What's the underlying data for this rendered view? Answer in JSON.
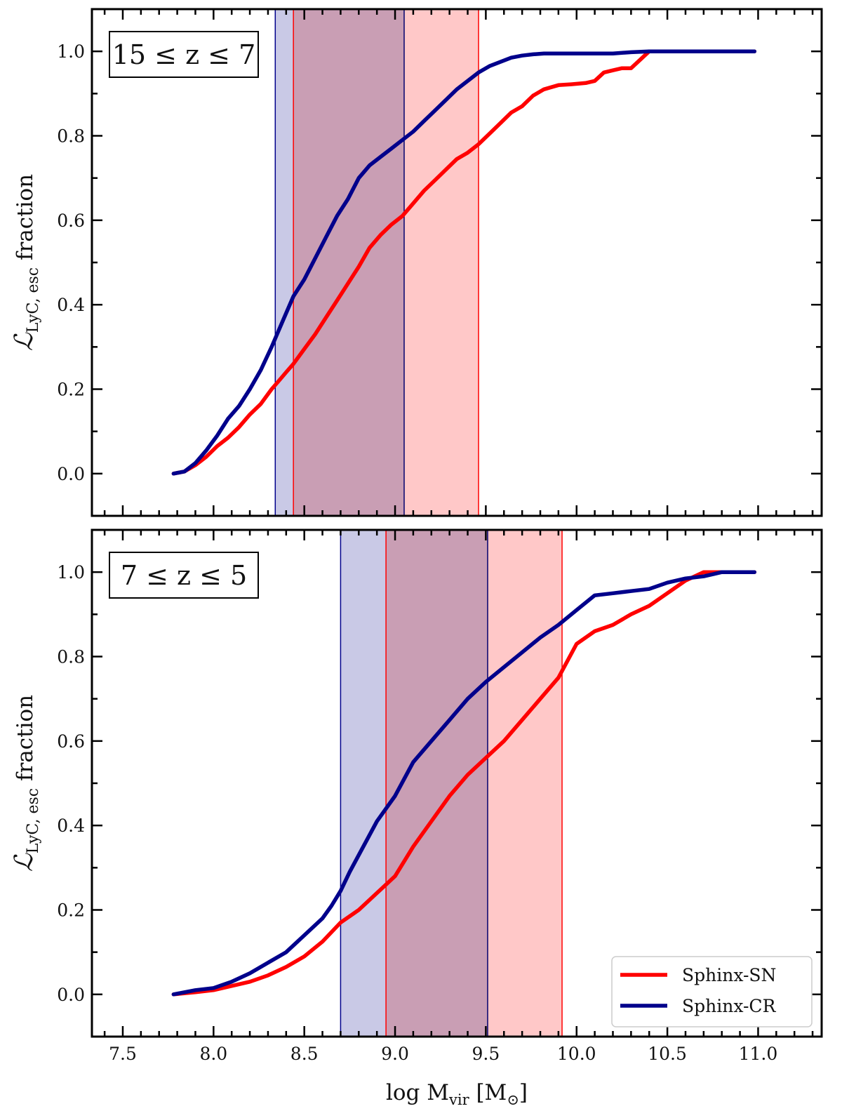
{
  "chart_data": [
    {
      "type": "line",
      "panel": "top",
      "annotation": "15 ≤ z ≤ 7",
      "ylabel": "ℒ_{LyC, esc} fraction",
      "ylabel_main": "ℒ",
      "ylabel_sub": "LyC, esc",
      "ylabel_tail": " fraction",
      "xlim": [
        7.33,
        11.35
      ],
      "ylim": [
        -0.1,
        1.1
      ],
      "yticks": [
        "0.0",
        "0.2",
        "0.4",
        "0.6",
        "0.8",
        "1.0"
      ],
      "bands": [
        {
          "series": "Sphinx-CR",
          "x0": 8.34,
          "x1": 9.05,
          "color": "#00008b",
          "fill": "#c9c9e6"
        },
        {
          "series": "Sphinx-SN",
          "x0": 8.44,
          "x1": 9.46,
          "color": "#ff0000",
          "fill": "#ffc8c8"
        }
      ],
      "series": [
        {
          "name": "Sphinx-SN",
          "color": "#ff0000",
          "x": [
            7.78,
            7.84,
            7.9,
            7.96,
            8.02,
            8.08,
            8.14,
            8.2,
            8.26,
            8.32,
            8.36,
            8.4,
            8.44,
            8.5,
            8.56,
            8.62,
            8.68,
            8.74,
            8.8,
            8.86,
            8.92,
            8.98,
            9.04,
            9.1,
            9.16,
            9.22,
            9.28,
            9.34,
            9.4,
            9.46,
            9.52,
            9.58,
            9.64,
            9.7,
            9.76,
            9.82,
            9.9,
            9.97,
            10.05,
            10.1,
            10.15,
            10.2,
            10.25,
            10.3,
            10.35,
            10.4,
            10.5,
            10.98
          ],
          "y": [
            0.0,
            0.005,
            0.02,
            0.04,
            0.065,
            0.085,
            0.11,
            0.14,
            0.165,
            0.2,
            0.22,
            0.24,
            0.26,
            0.295,
            0.33,
            0.37,
            0.41,
            0.45,
            0.49,
            0.535,
            0.565,
            0.59,
            0.61,
            0.64,
            0.67,
            0.695,
            0.72,
            0.745,
            0.76,
            0.78,
            0.805,
            0.83,
            0.855,
            0.87,
            0.895,
            0.91,
            0.92,
            0.922,
            0.925,
            0.93,
            0.95,
            0.955,
            0.96,
            0.96,
            0.98,
            1.0,
            1.0,
            1.0
          ]
        },
        {
          "name": "Sphinx-CR",
          "color": "#00008b",
          "x": [
            7.78,
            7.84,
            7.9,
            7.96,
            8.02,
            8.08,
            8.14,
            8.2,
            8.26,
            8.32,
            8.38,
            8.44,
            8.5,
            8.56,
            8.62,
            8.68,
            8.74,
            8.8,
            8.86,
            8.92,
            8.98,
            9.04,
            9.1,
            9.16,
            9.22,
            9.28,
            9.34,
            9.4,
            9.46,
            9.52,
            9.58,
            9.64,
            9.7,
            9.76,
            9.82,
            9.88,
            9.94,
            10.0,
            10.2,
            10.3,
            10.4,
            10.98
          ],
          "y": [
            0.0,
            0.005,
            0.025,
            0.055,
            0.09,
            0.13,
            0.16,
            0.2,
            0.245,
            0.3,
            0.36,
            0.42,
            0.46,
            0.51,
            0.56,
            0.61,
            0.65,
            0.7,
            0.73,
            0.75,
            0.77,
            0.79,
            0.81,
            0.835,
            0.86,
            0.885,
            0.91,
            0.93,
            0.95,
            0.965,
            0.975,
            0.985,
            0.99,
            0.993,
            0.995,
            0.995,
            0.995,
            0.995,
            0.995,
            0.998,
            1.0,
            1.0
          ]
        }
      ]
    },
    {
      "type": "line",
      "panel": "bottom",
      "annotation": "7 ≤ z ≤ 5",
      "ylabel": "ℒ_{LyC, esc} fraction",
      "ylabel_main": "ℒ",
      "ylabel_sub": "LyC, esc",
      "ylabel_tail": " fraction",
      "xlabel": "log M_vir [M_⊙]",
      "xlabel_main": "log M",
      "xlabel_sub": "vir",
      "xlabel_mid": " [M",
      "xlabel_sub2": "⊙",
      "xlabel_tail": "]",
      "xlim": [
        7.33,
        11.35
      ],
      "ylim": [
        -0.1,
        1.1
      ],
      "xticks": [
        "7.5",
        "8.0",
        "8.5",
        "9.0",
        "9.5",
        "10.0",
        "10.5",
        "11.0"
      ],
      "yticks": [
        "0.0",
        "0.2",
        "0.4",
        "0.6",
        "0.8",
        "1.0"
      ],
      "legend": {
        "location": "lower right",
        "entries": [
          "Sphinx-SN",
          "Sphinx-CR"
        ]
      },
      "bands": [
        {
          "series": "Sphinx-CR",
          "x0": 8.7,
          "x1": 9.51,
          "color": "#00008b",
          "fill": "#c9c9e6"
        },
        {
          "series": "Sphinx-SN",
          "x0": 8.95,
          "x1": 9.92,
          "color": "#ff0000",
          "fill": "#ffc8c8"
        }
      ],
      "series": [
        {
          "name": "Sphinx-SN",
          "color": "#ff0000",
          "x": [
            7.78,
            7.9,
            8.0,
            8.1,
            8.2,
            8.3,
            8.4,
            8.5,
            8.6,
            8.7,
            8.8,
            8.9,
            9.0,
            9.1,
            9.2,
            9.3,
            9.4,
            9.5,
            9.6,
            9.7,
            9.8,
            9.9,
            10.0,
            10.1,
            10.2,
            10.3,
            10.4,
            10.5,
            10.6,
            10.7,
            10.8,
            10.98
          ],
          "y": [
            0.0,
            0.005,
            0.01,
            0.02,
            0.03,
            0.045,
            0.065,
            0.09,
            0.125,
            0.17,
            0.2,
            0.24,
            0.28,
            0.35,
            0.41,
            0.47,
            0.52,
            0.56,
            0.6,
            0.65,
            0.7,
            0.75,
            0.83,
            0.86,
            0.875,
            0.9,
            0.92,
            0.95,
            0.98,
            1.0,
            1.0,
            1.0
          ]
        },
        {
          "name": "Sphinx-CR",
          "color": "#00008b",
          "x": [
            7.78,
            7.9,
            8.0,
            8.1,
            8.2,
            8.3,
            8.4,
            8.5,
            8.6,
            8.65,
            8.7,
            8.75,
            8.8,
            8.9,
            9.0,
            9.1,
            9.2,
            9.3,
            9.4,
            9.5,
            9.6,
            9.7,
            9.8,
            9.9,
            10.0,
            10.1,
            10.2,
            10.3,
            10.4,
            10.5,
            10.6,
            10.7,
            10.8,
            10.98
          ],
          "y": [
            0.0,
            0.01,
            0.015,
            0.03,
            0.05,
            0.075,
            0.1,
            0.14,
            0.18,
            0.21,
            0.245,
            0.29,
            0.33,
            0.41,
            0.47,
            0.55,
            0.6,
            0.65,
            0.7,
            0.74,
            0.775,
            0.81,
            0.845,
            0.875,
            0.91,
            0.945,
            0.95,
            0.955,
            0.96,
            0.975,
            0.985,
            0.99,
            1.0,
            1.0
          ]
        }
      ]
    }
  ]
}
